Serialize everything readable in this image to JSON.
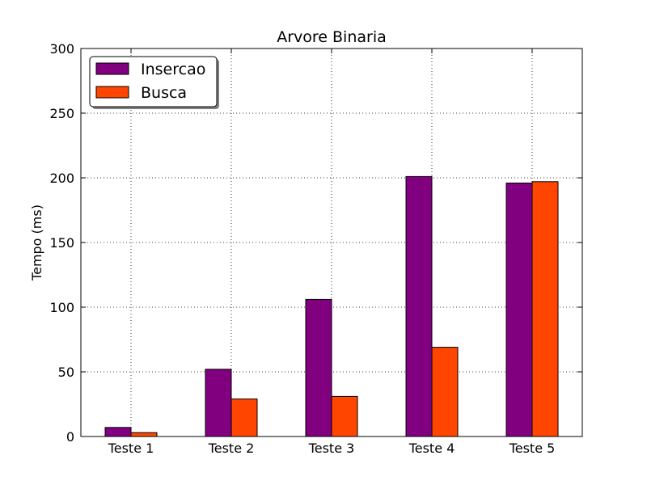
{
  "chart_data": {
    "type": "bar",
    "title": "Arvore Binaria",
    "xlabel": "",
    "ylabel": "Tempo (ms)",
    "categories": [
      "Teste 1",
      "Teste 2",
      "Teste 3",
      "Teste 4",
      "Teste 5"
    ],
    "ylim": [
      0,
      300
    ],
    "yticks": [
      0,
      50,
      100,
      150,
      200,
      250,
      300
    ],
    "grid": true,
    "legend_position": "top-left",
    "series": [
      {
        "name": "Insercao",
        "color": "#800080",
        "values": [
          7,
          52,
          106,
          201,
          196
        ]
      },
      {
        "name": "Busca",
        "color": "#ff4500",
        "values": [
          3,
          29,
          31,
          69,
          197
        ]
      }
    ]
  }
}
